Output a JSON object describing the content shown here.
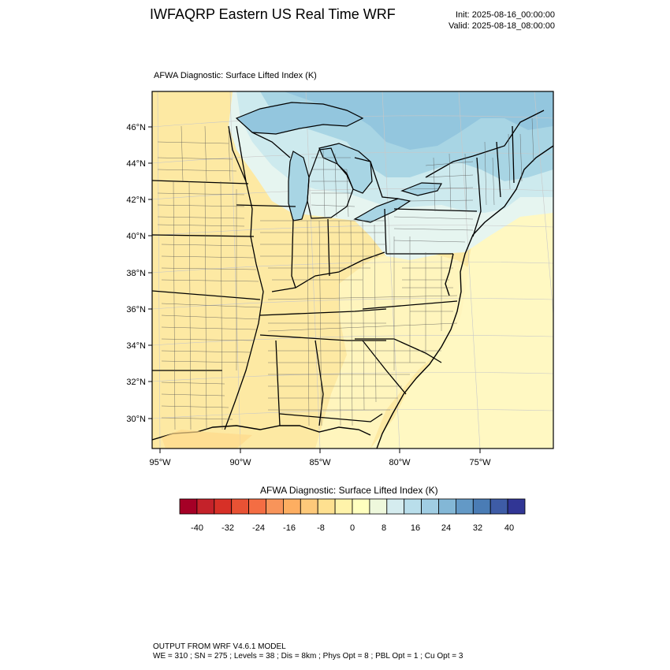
{
  "header": {
    "title": "IWFAQRP Eastern US Real Time WRF",
    "init": "Init: 2025-08-16_00:00:00",
    "valid": "Valid: 2025-08-18_08:00:00"
  },
  "map": {
    "panel_title": "AFWA Diagnostic: Surface Lifted Index   (K)",
    "lat_labels": [
      "46°N",
      "44°N",
      "42°N",
      "40°N",
      "38°N",
      "36°N",
      "34°N",
      "32°N",
      "30°N"
    ],
    "lon_labels": [
      "95°W",
      "90°W",
      "85°W",
      "80°W",
      "75°W"
    ],
    "field_colors": {
      "warm_land": "#fde9a3",
      "slight_warm": "#fff5bd",
      "ocean": "#fff8c2",
      "cool_1": "#e6f5f0",
      "cool_2": "#cdeaee",
      "cool_3": "#a8d5e4",
      "cool_4": "#93c6de"
    }
  },
  "colorbar": {
    "title": "AFWA Diagnostic: Surface Lifted Index  (K)",
    "tick_labels": [
      "-40",
      "-32",
      "-24",
      "-16",
      "-8",
      "0",
      "8",
      "16",
      "24",
      "32",
      "40"
    ],
    "colors": [
      "#a50026",
      "#c4222a",
      "#d73027",
      "#e85234",
      "#f46d43",
      "#f8945a",
      "#fdae61",
      "#fdc97a",
      "#fee090",
      "#fff3aa",
      "#ffffbf",
      "#eef8dc",
      "#d5ecef",
      "#b9deeb",
      "#a0cde3",
      "#83b7d6",
      "#6399c6",
      "#4a7cb5",
      "#3e5ca6",
      "#313695"
    ]
  },
  "footer": {
    "line1": "OUTPUT FROM WRF V4.6.1 MODEL",
    "line2": "WE = 310 ; SN = 275 ; Levels = 38 ; Dis = 8km ; Phys Opt = 8 ; PBL Opt = 1 ; Cu Opt = 3"
  }
}
